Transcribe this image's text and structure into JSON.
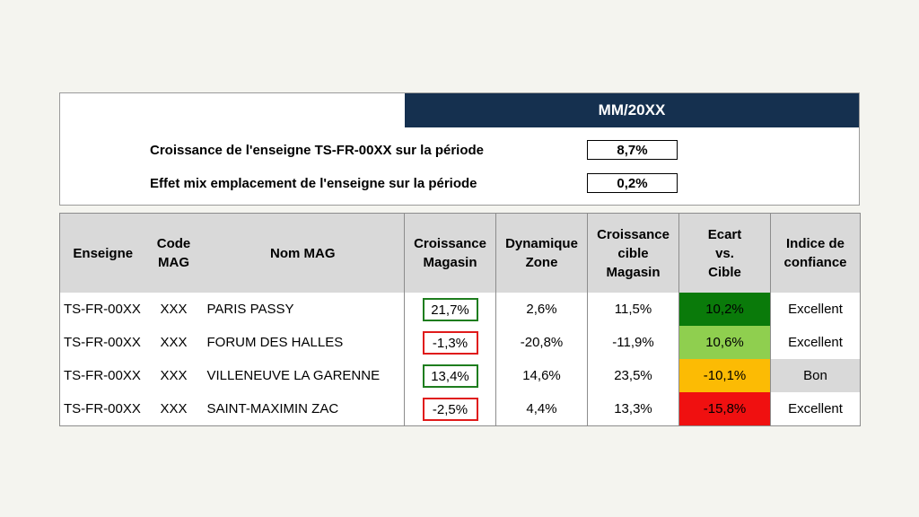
{
  "summary": {
    "period": "MM/20XX",
    "metrics": [
      {
        "label": "Croissance de l'enseigne TS-FR-00XX sur la période",
        "value": "8,7%"
      },
      {
        "label": "Effet mix emplacement de l'enseigne sur la période",
        "value": "0,2%"
      }
    ]
  },
  "table": {
    "headers": {
      "enseigne": "Enseigne",
      "code_1": "Code",
      "code_2": "MAG",
      "nom": "Nom MAG",
      "croissance_1": "Croissance",
      "croissance_2": "Magasin",
      "dynamique_1": "Dynamique",
      "dynamique_2": "Zone",
      "cible_1": "Croissance",
      "cible_2": "cible",
      "cible_3": "Magasin",
      "ecart_1": "Ecart",
      "ecart_2": "vs.",
      "ecart_3": "Cible",
      "indice_1": "Indice de",
      "indice_2": "confiance"
    },
    "rows": [
      {
        "enseigne": "TS-FR-00XX",
        "code": "XXX",
        "nom": "PARIS PASSY",
        "croissance": "21,7%",
        "dynamique": "2,6%",
        "cible": "11,5%",
        "ecart": "10,2%",
        "indice": "Excellent"
      },
      {
        "enseigne": "TS-FR-00XX",
        "code": "XXX",
        "nom": "FORUM DES HALLES",
        "croissance": "-1,3%",
        "dynamique": "-20,8%",
        "cible": "-11,9%",
        "ecart": "10,6%",
        "indice": "Excellent"
      },
      {
        "enseigne": "TS-FR-00XX",
        "code": "XXX",
        "nom": "VILLENEUVE LA GARENNE",
        "croissance": "13,4%",
        "dynamique": "14,6%",
        "cible": "23,5%",
        "ecart": "-10,1%",
        "indice": "Bon"
      },
      {
        "enseigne": "TS-FR-00XX",
        "code": "XXX",
        "nom": "SAINT-MAXIMIN ZAC",
        "croissance": "-2,5%",
        "dynamique": "4,4%",
        "cible": "13,3%",
        "ecart": "-15,8%",
        "indice": "Excellent"
      }
    ]
  },
  "colors": {
    "header_navy": "#15304f",
    "positive_border": "#1e7d1e",
    "negative_border": "#e01b1b",
    "ecart_row1": "#0a7a0a",
    "ecart_row2": "#8fcf4f",
    "ecart_row3": "#fcbb04",
    "ecart_row4": "#f01010",
    "indice_shaded": "#d9d9d9"
  }
}
